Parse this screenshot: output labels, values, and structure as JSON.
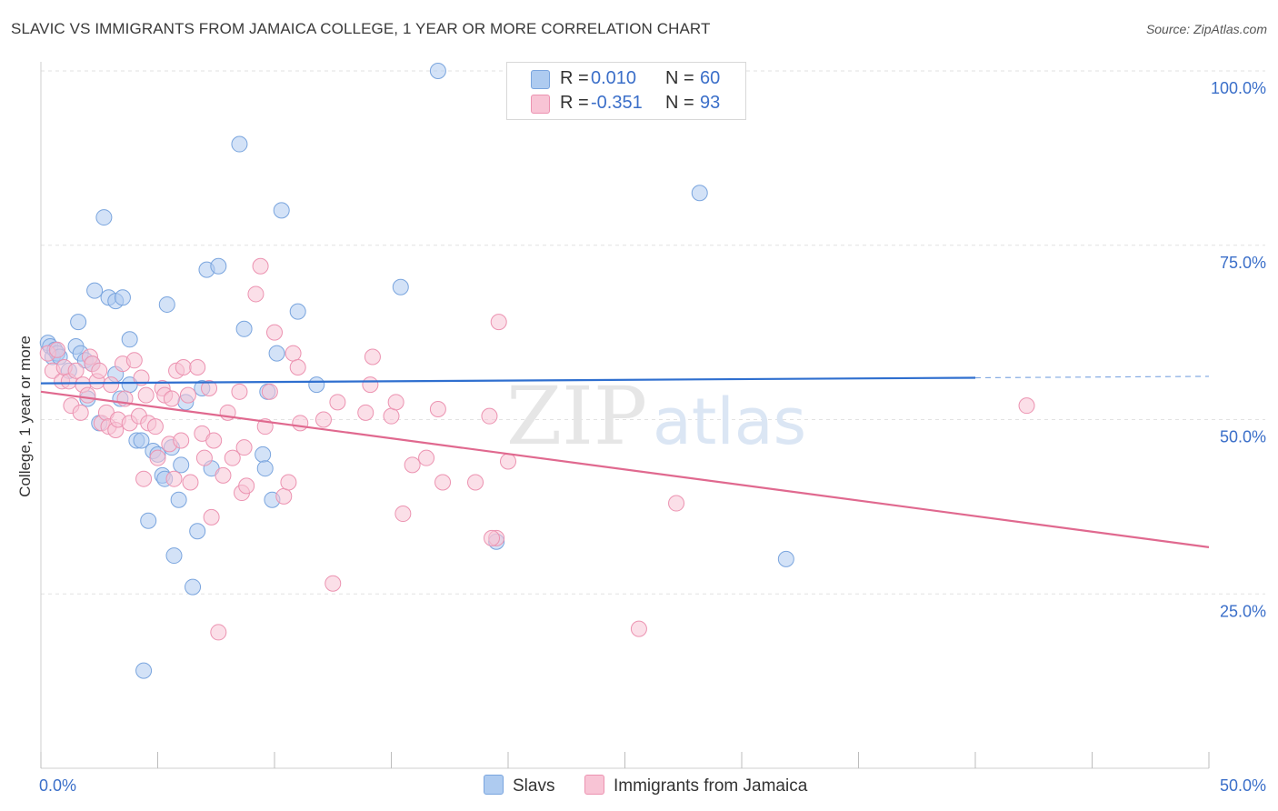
{
  "title": "SLAVIC VS IMMIGRANTS FROM JAMAICA COLLEGE, 1 YEAR OR MORE CORRELATION CHART",
  "source": "Source: ZipAtlas.com",
  "watermark": {
    "zip": "ZIP",
    "atlas": "atlas"
  },
  "legend": {
    "rows": [
      {
        "r_label": "R =",
        "r_value": "0.010",
        "n_label": "N =",
        "n_value": "60",
        "color": "#aecbf0",
        "border": "#7aa5de"
      },
      {
        "r_label": "R =",
        "r_value": "-0.351",
        "n_label": "N =",
        "n_value": "93",
        "color": "#f8c4d5",
        "border": "#ec93b1"
      }
    ]
  },
  "chart_data": {
    "type": "scatter",
    "title": "SLAVIC VS IMMIGRANTS FROM JAMAICA COLLEGE, 1 YEAR OR MORE CORRELATION CHART",
    "xlabel": "",
    "ylabel": "College, 1 year or more",
    "xlim": [
      0,
      50
    ],
    "ylim": [
      0,
      100
    ],
    "x_tick_labels": [
      "0.0%",
      "50.0%"
    ],
    "y_tick_labels": [
      "25.0%",
      "50.0%",
      "75.0%",
      "100.0%"
    ],
    "y_ticks": [
      25,
      50,
      75,
      100
    ],
    "grid": true,
    "legend_position": "top-center",
    "series": [
      {
        "name": "Slavs",
        "color": "#aecbf0",
        "stroke": "#7aa5de",
        "trend_color": "#2f6fcf",
        "trend": {
          "x0": 0,
          "y0": 55.2,
          "x1": 40,
          "y1": 56.0,
          "dash_to_x": 50,
          "dash_to_y": 56.2
        },
        "points": [
          [
            0.3,
            61
          ],
          [
            0.4,
            60.5
          ],
          [
            0.5,
            59
          ],
          [
            0.6,
            60
          ],
          [
            0.7,
            59.5
          ],
          [
            0.8,
            59
          ],
          [
            1.2,
            57
          ],
          [
            1.5,
            60.5
          ],
          [
            1.6,
            64
          ],
          [
            1.7,
            59.5
          ],
          [
            1.9,
            58.5
          ],
          [
            2.0,
            53
          ],
          [
            2.2,
            58
          ],
          [
            2.3,
            68.5
          ],
          [
            2.5,
            49.5
          ],
          [
            2.7,
            79
          ],
          [
            2.9,
            67.5
          ],
          [
            3.2,
            67
          ],
          [
            3.2,
            56.5
          ],
          [
            3.4,
            53
          ],
          [
            3.5,
            67.5
          ],
          [
            3.8,
            61.5
          ],
          [
            3.8,
            55
          ],
          [
            4.1,
            47
          ],
          [
            4.3,
            47
          ],
          [
            4.4,
            14
          ],
          [
            4.6,
            35.5
          ],
          [
            4.8,
            45.5
          ],
          [
            5.0,
            45
          ],
          [
            5.2,
            42
          ],
          [
            5.3,
            41.5
          ],
          [
            5.4,
            66.5
          ],
          [
            5.6,
            46
          ],
          [
            5.7,
            30.5
          ],
          [
            5.9,
            38.5
          ],
          [
            6.0,
            43.5
          ],
          [
            6.2,
            52.5
          ],
          [
            6.5,
            26
          ],
          [
            6.7,
            34
          ],
          [
            6.9,
            54.5
          ],
          [
            7.1,
            71.5
          ],
          [
            7.3,
            43
          ],
          [
            7.6,
            72
          ],
          [
            8.5,
            89.5
          ],
          [
            8.7,
            63
          ],
          [
            9.5,
            45
          ],
          [
            9.6,
            43
          ],
          [
            9.7,
            54
          ],
          [
            9.9,
            38.5
          ],
          [
            10.1,
            59.5
          ],
          [
            10.3,
            80
          ],
          [
            11.0,
            65.5
          ],
          [
            11.8,
            55
          ],
          [
            15.4,
            69
          ],
          [
            17.0,
            100
          ],
          [
            19.5,
            32.5
          ],
          [
            28.2,
            82.5
          ],
          [
            31.9,
            30
          ]
        ]
      },
      {
        "name": "Immigrants from Jamaica",
        "color": "#f8c4d5",
        "stroke": "#ec93b1",
        "trend_color": "#e0698f",
        "trend": {
          "x0": 0,
          "y0": 54.0,
          "x1": 50,
          "y1": 31.7
        },
        "points": [
          [
            0.3,
            59.5
          ],
          [
            0.5,
            57
          ],
          [
            0.7,
            60
          ],
          [
            0.9,
            55.5
          ],
          [
            1.0,
            57.5
          ],
          [
            1.2,
            55.5
          ],
          [
            1.3,
            52
          ],
          [
            1.5,
            57
          ],
          [
            1.7,
            51
          ],
          [
            1.8,
            55
          ],
          [
            2.0,
            53.5
          ],
          [
            2.1,
            59
          ],
          [
            2.2,
            58
          ],
          [
            2.4,
            55.5
          ],
          [
            2.5,
            57
          ],
          [
            2.6,
            49.5
          ],
          [
            2.8,
            51
          ],
          [
            2.9,
            49
          ],
          [
            3.0,
            55
          ],
          [
            3.2,
            48.5
          ],
          [
            3.3,
            50
          ],
          [
            3.5,
            58
          ],
          [
            3.6,
            53
          ],
          [
            3.8,
            49.5
          ],
          [
            4.0,
            58.5
          ],
          [
            4.2,
            50.5
          ],
          [
            4.3,
            56
          ],
          [
            4.4,
            41.5
          ],
          [
            4.5,
            53.5
          ],
          [
            4.6,
            49.5
          ],
          [
            4.9,
            49
          ],
          [
            5.0,
            44.5
          ],
          [
            5.2,
            54.5
          ],
          [
            5.3,
            53.5
          ],
          [
            5.5,
            46.5
          ],
          [
            5.6,
            53
          ],
          [
            5.7,
            41.5
          ],
          [
            5.8,
            57
          ],
          [
            6.0,
            47
          ],
          [
            6.1,
            57.5
          ],
          [
            6.3,
            53.5
          ],
          [
            6.4,
            41
          ],
          [
            6.7,
            57.5
          ],
          [
            6.9,
            48
          ],
          [
            7.0,
            44.5
          ],
          [
            7.2,
            54.5
          ],
          [
            7.3,
            36
          ],
          [
            7.4,
            47
          ],
          [
            7.6,
            19.5
          ],
          [
            7.8,
            42
          ],
          [
            8.0,
            51
          ],
          [
            8.2,
            44.5
          ],
          [
            8.5,
            54
          ],
          [
            8.6,
            39.5
          ],
          [
            8.7,
            46
          ],
          [
            8.8,
            40.5
          ],
          [
            9.2,
            68
          ],
          [
            9.4,
            72
          ],
          [
            9.6,
            49
          ],
          [
            9.8,
            54
          ],
          [
            10.0,
            62.5
          ],
          [
            10.4,
            39
          ],
          [
            10.6,
            41
          ],
          [
            10.8,
            59.5
          ],
          [
            11.0,
            57.5
          ],
          [
            11.1,
            49.5
          ],
          [
            12.1,
            50
          ],
          [
            12.5,
            26.5
          ],
          [
            12.7,
            52.5
          ],
          [
            13.9,
            51
          ],
          [
            14.1,
            55
          ],
          [
            14.2,
            59
          ],
          [
            15.0,
            50.5
          ],
          [
            15.2,
            52.5
          ],
          [
            15.5,
            36.5
          ],
          [
            15.9,
            43.5
          ],
          [
            16.5,
            44.5
          ],
          [
            17.0,
            51.5
          ],
          [
            17.2,
            41
          ],
          [
            18.6,
            41
          ],
          [
            19.2,
            50.5
          ],
          [
            19.5,
            33
          ],
          [
            19.3,
            33
          ],
          [
            19.6,
            64
          ],
          [
            20.0,
            44
          ],
          [
            25.6,
            20
          ],
          [
            27.2,
            38
          ],
          [
            42.2,
            52
          ]
        ]
      }
    ]
  }
}
